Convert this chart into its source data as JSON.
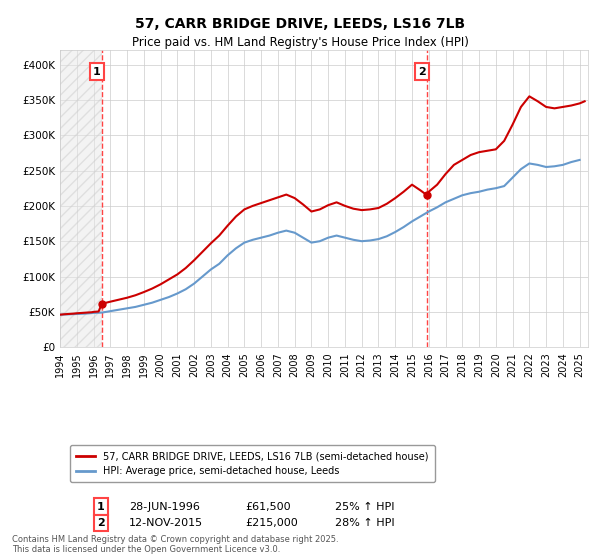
{
  "title": "57, CARR BRIDGE DRIVE, LEEDS, LS16 7LB",
  "subtitle": "Price paid vs. HM Land Registry's House Price Index (HPI)",
  "legend_line1": "57, CARR BRIDGE DRIVE, LEEDS, LS16 7LB (semi-detached house)",
  "legend_line2": "HPI: Average price, semi-detached house, Leeds",
  "footer": "Contains HM Land Registry data © Crown copyright and database right 2025.\nThis data is licensed under the Open Government Licence v3.0.",
  "annotation1_label": "1",
  "annotation1_date": "28-JUN-1996",
  "annotation1_price": "£61,500",
  "annotation1_hpi": "25% ↑ HPI",
  "annotation2_label": "2",
  "annotation2_date": "12-NOV-2015",
  "annotation2_price": "£215,000",
  "annotation2_hpi": "28% ↑ HPI",
  "color_red": "#cc0000",
  "color_blue": "#6699cc",
  "color_dashed": "#ff4444",
  "background_color": "#ffffff",
  "grid_color": "#cccccc",
  "hatch_color": "#dddddd",
  "ylim": [
    0,
    420000
  ],
  "xlim_start": 1994.0,
  "xlim_end": 2025.5,
  "vline1_x": 1996.5,
  "vline2_x": 2015.9,
  "sale1_x": 1996.5,
  "sale1_y": 61500,
  "sale2_x": 2015.9,
  "sale2_y": 215000,
  "hpi_years": [
    1994,
    1994.5,
    1995,
    1995.5,
    1996,
    1996.5,
    1997,
    1997.5,
    1998,
    1998.5,
    1999,
    1999.5,
    2000,
    2000.5,
    2001,
    2001.5,
    2002,
    2002.5,
    2003,
    2003.5,
    2004,
    2004.5,
    2005,
    2005.5,
    2006,
    2006.5,
    2007,
    2007.5,
    2008,
    2008.5,
    2009,
    2009.5,
    2010,
    2010.5,
    2011,
    2011.5,
    2012,
    2012.5,
    2013,
    2013.5,
    2014,
    2014.5,
    2015,
    2015.5,
    2016,
    2016.5,
    2017,
    2017.5,
    2018,
    2018.5,
    2019,
    2019.5,
    2020,
    2020.5,
    2021,
    2021.5,
    2022,
    2022.5,
    2023,
    2023.5,
    2024,
    2024.5,
    2025
  ],
  "hpi_values": [
    46000,
    46500,
    47000,
    47500,
    48500,
    49000,
    51000,
    53000,
    55000,
    57000,
    60000,
    63000,
    67000,
    71000,
    76000,
    82000,
    90000,
    100000,
    110000,
    118000,
    130000,
    140000,
    148000,
    152000,
    155000,
    158000,
    162000,
    165000,
    162000,
    155000,
    148000,
    150000,
    155000,
    158000,
    155000,
    152000,
    150000,
    151000,
    153000,
    157000,
    163000,
    170000,
    178000,
    185000,
    192000,
    198000,
    205000,
    210000,
    215000,
    218000,
    220000,
    223000,
    225000,
    228000,
    240000,
    252000,
    260000,
    258000,
    255000,
    256000,
    258000,
    262000,
    265000
  ],
  "price_values_segments": [
    {
      "x": [
        1994.0,
        1994.2,
        1994.5,
        1994.8,
        1995.0,
        1995.3,
        1995.6,
        1995.9,
        1996.0,
        1996.3,
        1996.5
      ],
      "y": [
        46000,
        46500,
        47000,
        47500,
        48000,
        48500,
        49000,
        49500,
        50000,
        50500,
        61500
      ]
    },
    {
      "x": [
        1996.5,
        1997,
        1997.5,
        1998,
        1998.5,
        1999,
        1999.5,
        2000,
        2000.5,
        2001,
        2001.5,
        2002,
        2002.5,
        2003,
        2003.5,
        2004,
        2004.5,
        2005,
        2005.5,
        2006,
        2006.5,
        2007,
        2007.5,
        2008,
        2008.5,
        2009,
        2009.5,
        2010,
        2010.5,
        2011,
        2011.5,
        2012,
        2012.5,
        2013,
        2013.5,
        2014,
        2014.5,
        2015,
        2015.5,
        2015.9
      ],
      "y": [
        61500,
        64400,
        67200,
        70000,
        73500,
        78000,
        83000,
        89000,
        96000,
        103000,
        112000,
        123000,
        135000,
        147000,
        158000,
        172000,
        185000,
        195000,
        200000,
        204000,
        208000,
        212000,
        216000,
        211000,
        202000,
        192000,
        195000,
        201000,
        205000,
        200000,
        196000,
        194000,
        195000,
        197000,
        203000,
        211000,
        220000,
        230000,
        222000,
        215000
      ]
    },
    {
      "x": [
        2015.9,
        2016,
        2016.5,
        2017,
        2017.5,
        2018,
        2018.5,
        2019,
        2019.5,
        2020,
        2020.5,
        2021,
        2021.5,
        2022,
        2022.5,
        2023,
        2023.5,
        2024,
        2024.5,
        2025,
        2025.3
      ],
      "y": [
        215000,
        220000,
        230000,
        245000,
        258000,
        265000,
        272000,
        276000,
        278000,
        280000,
        292000,
        315000,
        340000,
        355000,
        348000,
        340000,
        338000,
        340000,
        342000,
        345000,
        348000
      ]
    }
  ]
}
